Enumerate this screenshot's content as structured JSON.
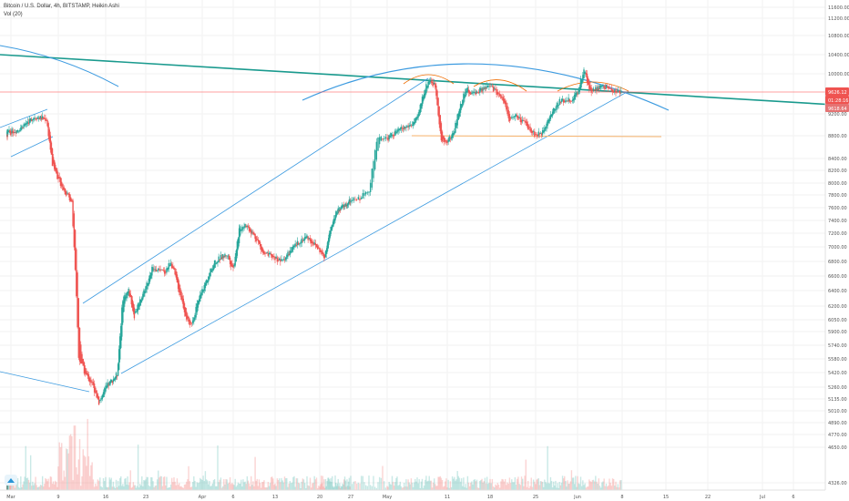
{
  "header": {
    "symbol_line": "Bitcoin / U.S. Dollar, 4h, BITSTAMP, Heikin Ashi",
    "volume_line": "Vol (20)"
  },
  "colors": {
    "up": "#26a69a",
    "down": "#ef5350",
    "trend_teal": "#1a9a8e",
    "channel_blue": "#3d9be0",
    "arc_orange": "#ef6c00",
    "support_orange": "#f6b26b",
    "price_line": "#ff4d4d",
    "grid": "#f2f2f2"
  },
  "chart_data": {
    "type": "candlestick",
    "chart_style": "Heikin Ashi",
    "interval": "4h",
    "x_tick_labels": [
      "Mar",
      "9",
      "16",
      "23",
      "Apr",
      "6",
      "13",
      "20",
      "27",
      "May",
      "11",
      "18",
      "25",
      "Jun",
      "8",
      "15",
      "22",
      "Jul",
      "6"
    ],
    "y_tick_labels": [
      "11600.00",
      "11200.00",
      "10800.00",
      "10400.00",
      "10000.00",
      "9200.00",
      "8800.00",
      "8400.00",
      "8200.00",
      "8000.00",
      "7800.00",
      "7600.00",
      "7400.00",
      "7200.00",
      "7000.00",
      "6800.00",
      "6600.00",
      "6400.00",
      "6200.00",
      "6050.00",
      "5900.00",
      "5740.00",
      "5580.00",
      "5420.00",
      "5260.00",
      "5135.00",
      "5010.00",
      "4890.00",
      "4770.00",
      "4650.00",
      "4326.00"
    ],
    "y_scale": "log",
    "price_tags": [
      {
        "label": "9626.12",
        "color": "#ef5350"
      },
      {
        "label": "01:28:16",
        "color": "#ef5350"
      },
      {
        "label": "9618.64",
        "color": "#e57373"
      }
    ],
    "series_path": [
      {
        "date": "Feb 27",
        "price": 8800
      },
      {
        "date": "Mar 2",
        "price": 8900
      },
      {
        "date": "Mar 5",
        "price": 9150
      },
      {
        "date": "Mar 7",
        "price": 9100
      },
      {
        "date": "Mar 8",
        "price": 8300
      },
      {
        "date": "Mar 10",
        "price": 7850
      },
      {
        "date": "Mar 11",
        "price": 7700
      },
      {
        "date": "Mar 12",
        "price": 5600
      },
      {
        "date": "Mar 13",
        "price": 5400
      },
      {
        "date": "Mar 14",
        "price": 5300
      },
      {
        "date": "Mar 15",
        "price": 5100
      },
      {
        "date": "Mar 16",
        "price": 5250
      },
      {
        "date": "Mar 18",
        "price": 5400
      },
      {
        "date": "Mar 19",
        "price": 6300
      },
      {
        "date": "Mar 20",
        "price": 6400
      },
      {
        "date": "Mar 21",
        "price": 6100
      },
      {
        "date": "Mar 23",
        "price": 6450
      },
      {
        "date": "Mar 24",
        "price": 6700
      },
      {
        "date": "Mar 26",
        "price": 6650
      },
      {
        "date": "Mar 27",
        "price": 6800
      },
      {
        "date": "Mar 29",
        "price": 6200
      },
      {
        "date": "Mar 30",
        "price": 5950
      },
      {
        "date": "Apr 1",
        "price": 6400
      },
      {
        "date": "Apr 3",
        "price": 6800
      },
      {
        "date": "Apr 5",
        "price": 6900
      },
      {
        "date": "Apr 6",
        "price": 6700
      },
      {
        "date": "Apr 7",
        "price": 7250
      },
      {
        "date": "Apr 8",
        "price": 7350
      },
      {
        "date": "Apr 10",
        "price": 7100
      },
      {
        "date": "Apr 11",
        "price": 6900
      },
      {
        "date": "Apr 13",
        "price": 6850
      },
      {
        "date": "Apr 14",
        "price": 6800
      },
      {
        "date": "Apr 16",
        "price": 7000
      },
      {
        "date": "Apr 17",
        "price": 7100
      },
      {
        "date": "Apr 18",
        "price": 7150
      },
      {
        "date": "Apr 20",
        "price": 6950
      },
      {
        "date": "Apr 21",
        "price": 6850
      },
      {
        "date": "Apr 23",
        "price": 7400
      },
      {
        "date": "Apr 24",
        "price": 7550
      },
      {
        "date": "Apr 26",
        "price": 7650
      },
      {
        "date": "Apr 28",
        "price": 7750
      },
      {
        "date": "Apr 29",
        "price": 7900
      },
      {
        "date": "Apr 30",
        "price": 8800
      },
      {
        "date": "May 1",
        "price": 8750
      },
      {
        "date": "May 3",
        "price": 8900
      },
      {
        "date": "May 5",
        "price": 9000
      },
      {
        "date": "May 6",
        "price": 9100
      },
      {
        "date": "May 7",
        "price": 9600
      },
      {
        "date": "May 8",
        "price": 9900
      },
      {
        "date": "May 9",
        "price": 9750
      },
      {
        "date": "May 10",
        "price": 8700
      },
      {
        "date": "May 11",
        "price": 8700
      },
      {
        "date": "May 12",
        "price": 8850
      },
      {
        "date": "May 13",
        "price": 9300
      },
      {
        "date": "May 14",
        "price": 9700
      },
      {
        "date": "May 15",
        "price": 9600
      },
      {
        "date": "May 17",
        "price": 9700
      },
      {
        "date": "May 18",
        "price": 9750
      },
      {
        "date": "May 20",
        "price": 9500
      },
      {
        "date": "May 21",
        "price": 9100
      },
      {
        "date": "May 22",
        "price": 9150
      },
      {
        "date": "May 24",
        "price": 8950
      },
      {
        "date": "May 25",
        "price": 8800
      },
      {
        "date": "May 26",
        "price": 8850
      },
      {
        "date": "May 27",
        "price": 9100
      },
      {
        "date": "May 29",
        "price": 9450
      },
      {
        "date": "May 31",
        "price": 9500
      },
      {
        "date": "Jun 1",
        "price": 9600
      },
      {
        "date": "Jun 2",
        "price": 10100
      },
      {
        "date": "Jun 3",
        "price": 9650
      },
      {
        "date": "Jun 4",
        "price": 9700
      },
      {
        "date": "Jun 5",
        "price": 9750
      },
      {
        "date": "Jun 6",
        "price": 9700
      },
      {
        "date": "Jun 7",
        "price": 9650
      },
      {
        "date": "Jun 8",
        "price": 9626
      }
    ]
  }
}
